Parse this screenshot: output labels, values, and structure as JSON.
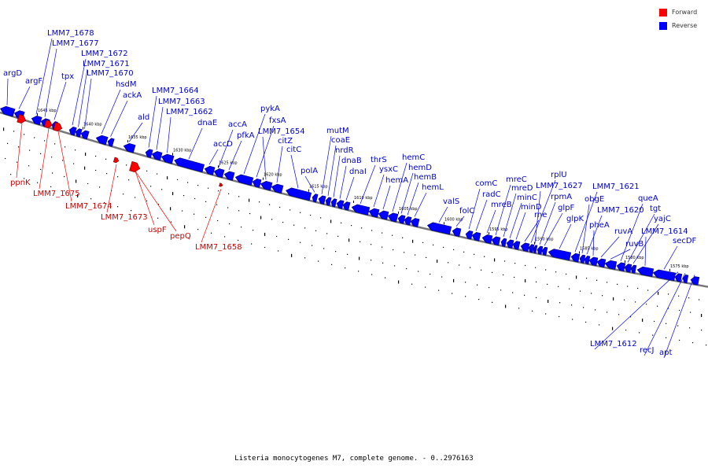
{
  "legend": [
    {
      "label": "Forward",
      "color": "#ff0000"
    },
    {
      "label": "Reverse",
      "color": "#0000ff"
    }
  ],
  "caption": "Listeria monocytogenes M7, complete genome. - 0..2976163",
  "colors": {
    "forward": "#ff0000",
    "reverse": "#0000ff",
    "reverse_label": "#0000cc",
    "forward_label": "#cc0000",
    "backbone": "#777777"
  },
  "scale_labels": [
    "1645 kbp",
    "1640 kbp",
    "1635 kbp",
    "1630 kbp",
    "1625 kbp",
    "1620 kbp",
    "1615 kbp",
    "1610 kbp",
    "1605 kbp",
    "1600 kbp",
    "1595 kbp",
    "1590 kbp",
    "1585 kbp",
    "1580 kbp",
    "1575 kbp"
  ],
  "reverse_genes": [
    "argD",
    "argF",
    "LMM7_1678",
    "LMM7_1677",
    "tpx",
    "LMM7_1672",
    "LMM7_1671",
    "LMM7_1670",
    "hsdM",
    "ackA",
    "ald",
    "LMM7_1664",
    "LMM7_1663",
    "LMM7_1662",
    "dnaE",
    "accD",
    "accA",
    "pfkA",
    "pykA",
    "fxsA",
    "LMM7_1654",
    "citZ",
    "citC",
    "polA",
    "mutM",
    "coaE",
    "nrdR",
    "dnaB",
    "dnaI",
    "thrS",
    "ysxC",
    "hemA",
    "hemC",
    "hemD",
    "hemB",
    "hemL",
    "valS",
    "folC",
    "comC",
    "radC",
    "mreB",
    "mreC",
    "mreD",
    "minC",
    "minD",
    "rne",
    "rplU",
    "LMM7_1627",
    "rpmA",
    "glpF",
    "glpK",
    "LMM7_1621",
    "obgE",
    "LMM7_1620",
    "pheA",
    "ruvA",
    "ruvB",
    "queA",
    "tgt",
    "yajC",
    "LMM7_1614",
    "secDF",
    "LMM7_1612",
    "recJ",
    "apt"
  ],
  "forward_genes": [
    "ppnK",
    "LMM7_1675",
    "LMM7_1674",
    "LMM7_1673",
    "uspF",
    "pepQ",
    "LMM7_1658"
  ]
}
